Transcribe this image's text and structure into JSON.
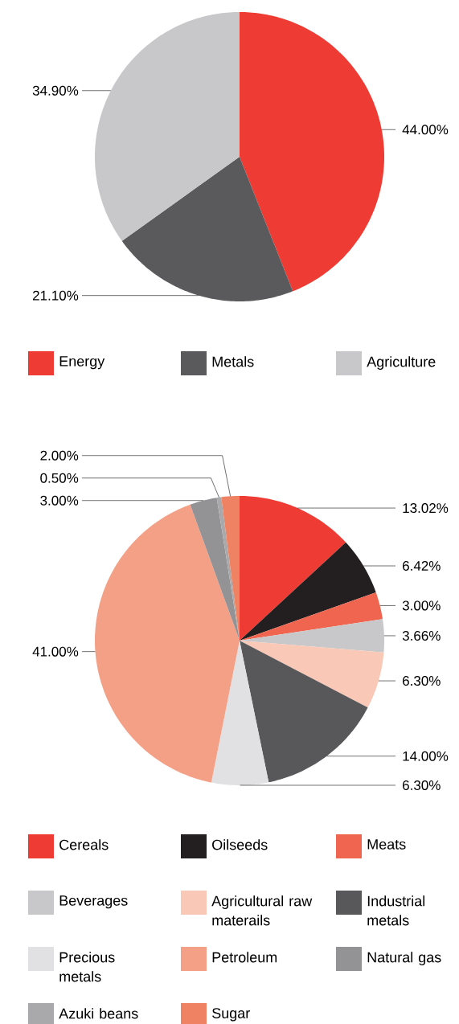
{
  "chart_data": [
    {
      "type": "pie",
      "categories": [
        "Energy",
        "Metals",
        "Agriculture"
      ],
      "values": [
        44.0,
        21.1,
        34.9
      ],
      "colors": [
        "#ee3b33",
        "#5a5a5c",
        "#c8c8ca"
      ],
      "value_labels": [
        "44.00%",
        "21.10%",
        "34.90%"
      ],
      "legend": "bottom"
    },
    {
      "type": "pie",
      "categories": [
        "Cereals",
        "Oilseeds",
        "Meats",
        "Beverages",
        "Agricultural raw materails",
        "Industrial metals",
        "Precious metals",
        "Petroleum",
        "Natural gas",
        "Azuki beans",
        "Sugar"
      ],
      "values": [
        13.02,
        6.42,
        3.0,
        3.66,
        6.3,
        14.0,
        6.3,
        41.0,
        3.0,
        0.5,
        2.0
      ],
      "colors": [
        "#ee3b33",
        "#231f20",
        "#ef6550",
        "#c8c8ca",
        "#f9c8b6",
        "#58585a",
        "#e1e1e3",
        "#f4a087",
        "#939396",
        "#a9a9ac",
        "#ef8262"
      ],
      "value_labels": [
        "13.02%",
        "6.42%",
        "3.00%",
        "3.66%",
        "6.30%",
        "14.00%",
        "6.30%",
        "41.00%",
        "3.00%",
        "0.50%",
        "2.00%"
      ],
      "legend": "bottom"
    }
  ]
}
